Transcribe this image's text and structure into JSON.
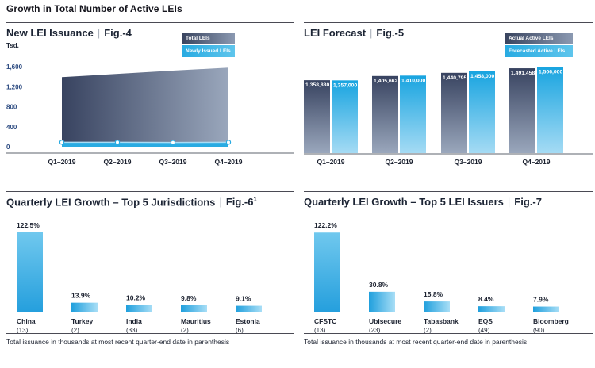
{
  "page": {
    "title": "Growth in Total Number of Active LEIs"
  },
  "colors": {
    "dark_top": "#384360",
    "dark_bottom": "#9aa7bc",
    "blue": "#29abe2",
    "blue_bar_top": "#18a4e0",
    "blue_bar_bottom": "#a5dbf4",
    "pct_tall_top": "#70c8ee",
    "pct_tall_bottom": "#259fdd",
    "pct_short_left": "#1f9fdd",
    "pct_short_right": "#a8def6",
    "band_line": "#a8dcf5",
    "axis_label": "#2b4a80",
    "axis_line": "#aeb1b6",
    "text": "#1c2230"
  },
  "sections": {
    "fig4": {
      "title": "New LEI Issuance",
      "separator": "|",
      "fig_label": "Fig.-4",
      "unit_label": "Tsd.",
      "legend": [
        {
          "label": "Total LEIs",
          "style": "dark"
        },
        {
          "label": "Newly Issued LEIs",
          "style": "blue"
        }
      ]
    },
    "fig5": {
      "title": "LEI Forecast",
      "separator": "|",
      "fig_label": "Fig.-5",
      "legend": [
        {
          "label": "Actual Active LEIs",
          "style": "dark"
        },
        {
          "label": "Forecasted Active LEIs",
          "style": "blue"
        }
      ]
    },
    "fig6": {
      "title": "Quarterly LEI Growth – Top 5 Jurisdictions",
      "separator": "|",
      "fig_label": "Fig.-6",
      "fig_superscript": "1",
      "footnote": "Total issuance in thousands at most recent quarter-end date in parenthesis"
    },
    "fig7": {
      "title": "Quarterly LEI Growth – Top 5 LEI Issuers",
      "separator": "|",
      "fig_label": "Fig.-7",
      "footnote": "Total issuance in thousands at most recent quarter-end date in parenthesis"
    }
  },
  "chart_data": [
    {
      "id": "fig4",
      "type": "area",
      "title": "New LEI Issuance",
      "ylabel": "Tsd.",
      "x": [
        "Q1–2019",
        "Q2–2019",
        "Q3–2019",
        "Q4–2019"
      ],
      "series": [
        {
          "name": "Total LEIs",
          "values_tsd": [
            1390,
            1455,
            1520,
            1580
          ]
        },
        {
          "name": "Newly Issued LEIs",
          "values_tsd": [
            90,
            90,
            85,
            90
          ]
        }
      ],
      "ylim": [
        0,
        1600
      ],
      "yticks": [
        0,
        400,
        800,
        1200,
        1600
      ],
      "ytick_labels": [
        "0",
        "400",
        "800",
        "1,200",
        "1,600"
      ],
      "grid": false,
      "legend_position": "top-right"
    },
    {
      "id": "fig5",
      "type": "bar",
      "title": "LEI Forecast",
      "categories": [
        "Q1–2019",
        "Q2–2019",
        "Q3–2019",
        "Q4–2019"
      ],
      "series": [
        {
          "name": "Actual Active LEIs",
          "values": [
            1358880,
            1405662,
            1440795,
            1491458
          ],
          "labels": [
            "1,358,880",
            "1,405,662",
            "1,440,795",
            "1,491,458"
          ]
        },
        {
          "name": "Forecasted Active LEIs",
          "values": [
            1357000,
            1410000,
            1458000,
            1506000
          ],
          "labels": [
            "1,357,000",
            "1,410,000",
            "1,458,000",
            "1,506,000"
          ]
        }
      ],
      "ylim": [
        550000,
        1580000
      ],
      "bars_truncated": true,
      "legend_position": "top-right"
    },
    {
      "id": "fig6",
      "type": "bar",
      "title": "Quarterly LEI Growth – Top 5 Jurisdictions",
      "categories": [
        "China",
        "Turkey",
        "India",
        "Mauritius",
        "Estonia"
      ],
      "category_counts": [
        "(13)",
        "(2)",
        "(33)",
        "(2)",
        "(6)"
      ],
      "values": [
        122.5,
        13.9,
        10.2,
        9.8,
        9.1
      ],
      "labels": [
        "122.5%",
        "13.9%",
        "10.2%",
        "9.8%",
        "9.1%"
      ],
      "ylim": [
        0,
        130
      ]
    },
    {
      "id": "fig7",
      "type": "bar",
      "title": "Quarterly LEI Growth – Top 5 LEI Issuers",
      "categories": [
        "CFSTC",
        "Ubisecure",
        "Tabasbank",
        "EQS",
        "Bloomberg"
      ],
      "category_counts": [
        "(13)",
        "(23)",
        "(2)",
        "(49)",
        "(90)"
      ],
      "values": [
        122.2,
        30.8,
        15.8,
        8.4,
        7.9
      ],
      "labels": [
        "122.2%",
        "30.8%",
        "15.8%",
        "8.4%",
        "7.9%"
      ],
      "ylim": [
        0,
        130
      ]
    }
  ]
}
